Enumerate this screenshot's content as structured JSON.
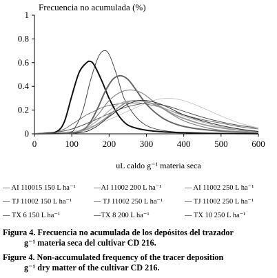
{
  "chart_data": {
    "type": "line",
    "title": "Frecuencia no acumulada (%)",
    "xlabel": "uL caldo g⁻¹ materia seca",
    "ylabel": "Frecuencia no acumulada (%)",
    "xlim": [
      0,
      600
    ],
    "ylim": [
      0,
      1
    ],
    "x_ticks": [
      "0",
      "100",
      "200",
      "300",
      "400",
      "500",
      "600"
    ],
    "y_ticks": [
      "0",
      "0.2",
      "0.4",
      "0.6",
      "0.8",
      "1"
    ],
    "grid": false,
    "legend_position": "bottom",
    "series": [
      {
        "name": "AI 110015 150 L ha⁻¹",
        "color": "#707070",
        "width": 1.0,
        "x": [
          0,
          50,
          80,
          100,
          120,
          140,
          160,
          180,
          200,
          220,
          240,
          260,
          280,
          300,
          330,
          360,
          400,
          450,
          500,
          550,
          600
        ],
        "y": [
          0,
          0.01,
          0.04,
          0.08,
          0.12,
          0.16,
          0.19,
          0.22,
          0.24,
          0.25,
          0.26,
          0.26,
          0.26,
          0.25,
          0.23,
          0.2,
          0.16,
          0.12,
          0.09,
          0.06,
          0.04
        ]
      },
      {
        "name": "AI 11002 200 L ha⁻¹",
        "color": "#555555",
        "width": 1.0,
        "x": [
          0,
          50,
          100,
          150,
          200,
          240,
          280,
          300,
          330,
          360,
          400,
          450,
          500,
          550,
          600
        ],
        "y": [
          0,
          0.01,
          0.04,
          0.1,
          0.17,
          0.22,
          0.25,
          0.26,
          0.25,
          0.23,
          0.19,
          0.14,
          0.1,
          0.07,
          0.05
        ]
      },
      {
        "name": "AI 11002 250 L ha⁻¹",
        "color": "#c8c8c8",
        "width": 1.0,
        "x": [
          0,
          100,
          150,
          200,
          250,
          300,
          330,
          360,
          400,
          450,
          500,
          550,
          600
        ],
        "y": [
          0,
          0.02,
          0.06,
          0.12,
          0.19,
          0.26,
          0.29,
          0.3,
          0.28,
          0.22,
          0.15,
          0.09,
          0.05
        ]
      },
      {
        "name": "TJ 11002 150 L ha⁻¹",
        "color": "#444444",
        "width": 1.0,
        "x": [
          0,
          90,
          110,
          130,
          150,
          170,
          185,
          200,
          220,
          240,
          270,
          300,
          340,
          400,
          450,
          500,
          600
        ],
        "y": [
          0,
          0.01,
          0.06,
          0.2,
          0.45,
          0.64,
          0.7,
          0.67,
          0.5,
          0.3,
          0.15,
          0.07,
          0.03,
          0.01,
          0.005,
          0.003,
          0.001
        ]
      },
      {
        "name": "TJ 11002 250 L ha⁻¹",
        "color": "#b0b0b0",
        "width": 1.2,
        "x": [
          0,
          100,
          140,
          180,
          210,
          240,
          270,
          300,
          330,
          360,
          400,
          450,
          500,
          550,
          600
        ],
        "y": [
          0,
          0.01,
          0.05,
          0.14,
          0.22,
          0.27,
          0.28,
          0.27,
          0.24,
          0.2,
          0.15,
          0.1,
          0.06,
          0.04,
          0.02
        ]
      },
      {
        "name": "TX 6 150 L ha⁻¹",
        "color": "#111111",
        "width": 2.0,
        "x": [
          0,
          30,
          60,
          80,
          100,
          120,
          140,
          150,
          160,
          180,
          200,
          220,
          240,
          260,
          300,
          350,
          400,
          450,
          500,
          600
        ],
        "y": [
          0,
          0.005,
          0.02,
          0.1,
          0.32,
          0.52,
          0.6,
          0.61,
          0.58,
          0.45,
          0.3,
          0.18,
          0.1,
          0.06,
          0.03,
          0.015,
          0.01,
          0.005,
          0.003,
          0.001
        ]
      },
      {
        "name": "TX 8 200 L ha⁻¹",
        "color": "#666666",
        "width": 2.0,
        "x": [
          0,
          100,
          130,
          150,
          170,
          190,
          210,
          230,
          250,
          270,
          300,
          340,
          380,
          420,
          470,
          520,
          600
        ],
        "y": [
          0,
          0.005,
          0.03,
          0.1,
          0.22,
          0.36,
          0.46,
          0.49,
          0.46,
          0.38,
          0.25,
          0.14,
          0.08,
          0.05,
          0.03,
          0.02,
          0.01
        ]
      },
      {
        "name": "TX 10 250 L ha⁻¹",
        "color": "#999999",
        "width": 1.8,
        "x": [
          0,
          100,
          150,
          190,
          220,
          250,
          280,
          310,
          340,
          370,
          400,
          450,
          500,
          550,
          600
        ],
        "y": [
          0,
          0.01,
          0.05,
          0.13,
          0.21,
          0.27,
          0.28,
          0.26,
          0.22,
          0.17,
          0.13,
          0.08,
          0.05,
          0.03,
          0.02
        ]
      }
    ],
    "extra_curves": [
      {
        "color": "#888888",
        "width": 1.2,
        "x": [
          0,
          100,
          140,
          170,
          200,
          230,
          260,
          290,
          320,
          360,
          400,
          450,
          500,
          600
        ],
        "y": [
          0,
          0.01,
          0.06,
          0.16,
          0.28,
          0.35,
          0.37,
          0.34,
          0.27,
          0.18,
          0.11,
          0.06,
          0.03,
          0.01
        ]
      },
      {
        "color": "#333333",
        "width": 1.0,
        "x": [
          0,
          120,
          160,
          190,
          220,
          250,
          280,
          300,
          330,
          360,
          400,
          450,
          500,
          550,
          600
        ],
        "y": [
          0,
          0.01,
          0.05,
          0.12,
          0.19,
          0.25,
          0.28,
          0.28,
          0.26,
          0.22,
          0.16,
          0.11,
          0.07,
          0.04,
          0.02
        ]
      }
    ]
  },
  "legend": [
    [
      "— AI 110015 150 L ha⁻¹",
      "—AI 11002 200 L ha⁻¹",
      "— AI 11002 250 L ha⁻¹"
    ],
    [
      "— TJ 11002 150 L ha⁻¹",
      "— TJ 11002 250 L ha⁻¹",
      "— TJ 11002 250 L ha⁻¹"
    ],
    [
      "— TX 6 150 L ha⁻¹",
      "—TX 8 200 L ha⁻¹",
      "— TX 10 250 L ha⁻¹"
    ]
  ],
  "caption": {
    "es_line1": "Figura 4. Frecuencia no acumulada de los depósitos del trazador",
    "es_line2": "g⁻¹ materia seca del cultivar CD 216.",
    "en_line1": "Figure 4. Non-accumulated frequency of the tracer deposition",
    "en_line2": "g⁻¹ dry matter of the cultivar CD 216."
  }
}
